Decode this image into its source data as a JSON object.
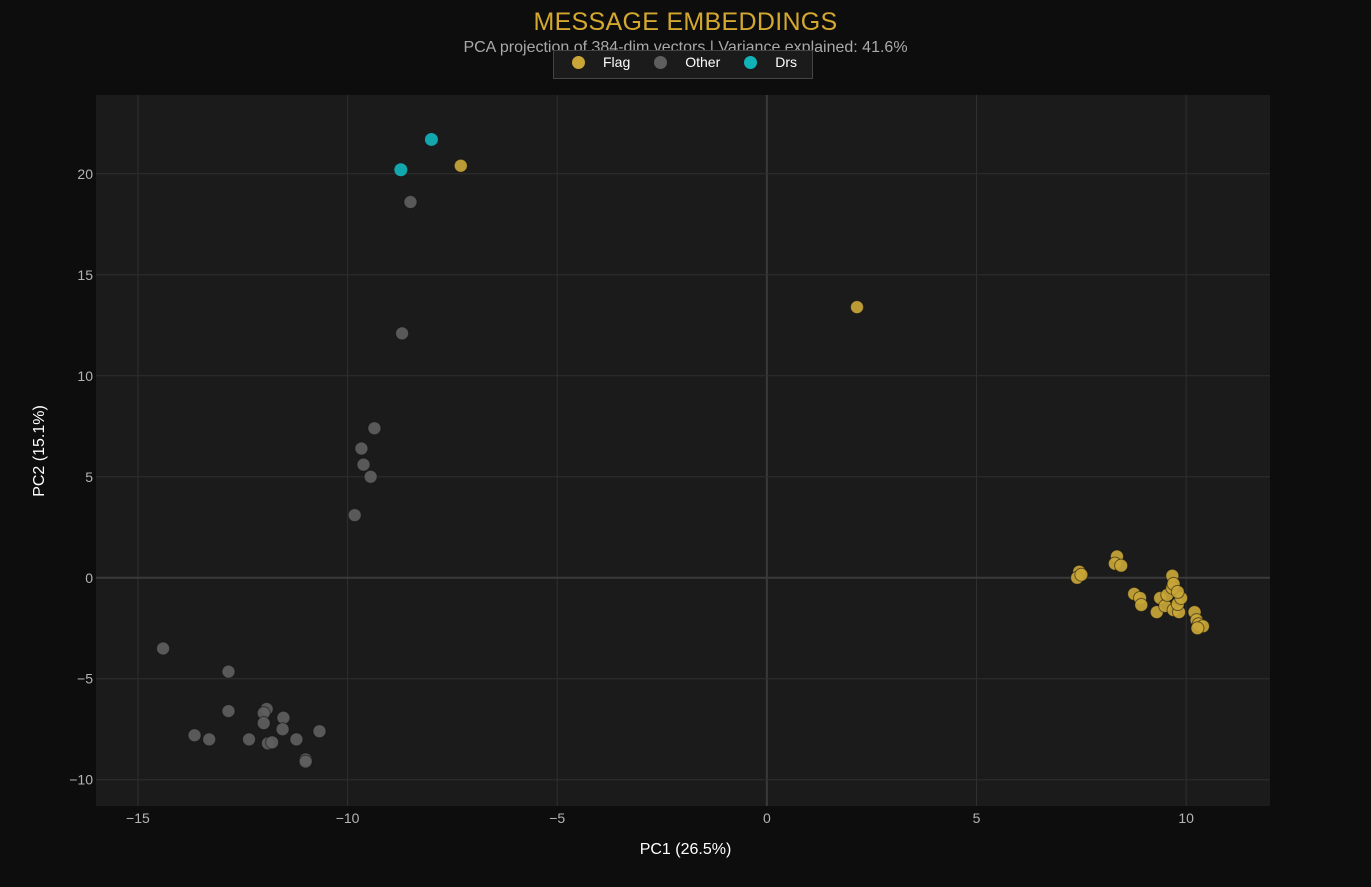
{
  "title": "MESSAGE EMBEDDINGS",
  "subtitle": "PCA projection of 384-dim vectors | Variance explained: 41.6%",
  "colors": {
    "background": "#0d0d0d",
    "plot_background": "#1b1b1b",
    "grid": "#2f2f2f",
    "title": "#d4a82f",
    "subtitle": "#a9a9a9",
    "tick": "#b4b4b4",
    "Flag": "#c9a637",
    "Other": "#5e5e5e",
    "Drs": "#10b3b8"
  },
  "legend": {
    "items": [
      {
        "label": "Flag",
        "color": "#c9a637"
      },
      {
        "label": "Other",
        "color": "#5e5e5e"
      },
      {
        "label": "Drs",
        "color": "#10b3b8"
      }
    ]
  },
  "axes": {
    "x_title": "PC1 (26.5%)",
    "y_title": "PC2 (15.1%)",
    "x_ticks": [
      -15,
      -10,
      -5,
      0,
      5,
      10
    ],
    "y_ticks": [
      -10,
      -5,
      0,
      5,
      10,
      15,
      20
    ]
  },
  "chart_data": {
    "type": "scatter",
    "title": "MESSAGE EMBEDDINGS",
    "subtitle": "PCA projection of 384-dim vectors | Variance explained: 41.6%",
    "xlabel": "PC1 (26.5%)",
    "ylabel": "PC2 (15.1%)",
    "xlim": [
      -16,
      12
    ],
    "ylim": [
      -11.3,
      23.9
    ],
    "grid": true,
    "legend_position": "top-center",
    "series": [
      {
        "name": "Flag",
        "color": "#c9a637",
        "points": [
          [
            -7.3,
            20.4
          ],
          [
            2.15,
            13.4
          ],
          [
            7.45,
            0.3
          ],
          [
            7.4,
            0.0
          ],
          [
            7.5,
            0.15
          ],
          [
            8.35,
            1.05
          ],
          [
            8.3,
            0.7
          ],
          [
            8.45,
            0.6
          ],
          [
            8.76,
            -0.8
          ],
          [
            8.9,
            -1.0
          ],
          [
            8.93,
            -1.35
          ],
          [
            9.3,
            -1.7
          ],
          [
            9.38,
            -1.0
          ],
          [
            9.5,
            -1.4
          ],
          [
            9.55,
            -0.85
          ],
          [
            9.67,
            -0.5
          ],
          [
            9.67,
            0.1
          ],
          [
            9.7,
            -1.6
          ],
          [
            9.83,
            -1.7
          ],
          [
            9.8,
            -1.3
          ],
          [
            9.88,
            -1.0
          ],
          [
            9.7,
            -0.3
          ],
          [
            9.8,
            -0.7
          ],
          [
            10.2,
            -1.7
          ],
          [
            10.25,
            -2.1
          ],
          [
            10.3,
            -2.3
          ],
          [
            10.4,
            -2.4
          ],
          [
            10.27,
            -2.5
          ]
        ]
      },
      {
        "name": "Other",
        "color": "#5e5e5e",
        "points": [
          [
            -8.5,
            18.6
          ],
          [
            -8.7,
            12.1
          ],
          [
            -9.36,
            7.4
          ],
          [
            -9.67,
            6.4
          ],
          [
            -9.62,
            5.6
          ],
          [
            -9.45,
            5.0
          ],
          [
            -9.83,
            3.1
          ],
          [
            -14.4,
            -3.5
          ],
          [
            -12.84,
            -4.65
          ],
          [
            -12.84,
            -6.6
          ],
          [
            -13.65,
            -7.8
          ],
          [
            -13.3,
            -8.0
          ],
          [
            -12.35,
            -8.0
          ],
          [
            -11.93,
            -6.5
          ],
          [
            -12.0,
            -6.7
          ],
          [
            -12.0,
            -7.2
          ],
          [
            -11.53,
            -6.93
          ],
          [
            -11.55,
            -7.5
          ],
          [
            -11.9,
            -8.2
          ],
          [
            -11.8,
            -8.15
          ],
          [
            -11.22,
            -8.0
          ],
          [
            -10.67,
            -7.6
          ],
          [
            -11.0,
            -9.0
          ],
          [
            -11.0,
            -9.1
          ]
        ]
      },
      {
        "name": "Drs",
        "color": "#10b3b8",
        "points": [
          [
            -8.0,
            21.7
          ],
          [
            -8.73,
            20.2
          ]
        ]
      }
    ]
  }
}
